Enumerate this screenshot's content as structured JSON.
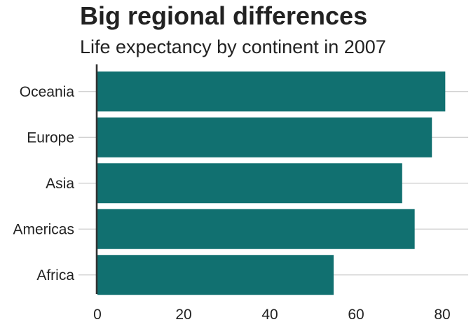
{
  "chart_data": {
    "type": "bar",
    "orientation": "horizontal",
    "title": "Big regional differences",
    "subtitle": "Life expectancy by continent in 2007",
    "categories": [
      "Africa",
      "Americas",
      "Asia",
      "Europe",
      "Oceania"
    ],
    "values": [
      54.8,
      73.6,
      70.7,
      77.6,
      80.7
    ],
    "xlabel": "",
    "ylabel": "",
    "xlim": [
      0,
      85
    ],
    "xticks": [
      0,
      20,
      40,
      60,
      80
    ],
    "grid": "horizontal lines at categories",
    "legend": "none",
    "bar_color": "#1380A1"
  },
  "colors": {
    "bar": "#117070",
    "grid": "#cbcbcb",
    "axis": "#333333",
    "text": "#222222"
  }
}
